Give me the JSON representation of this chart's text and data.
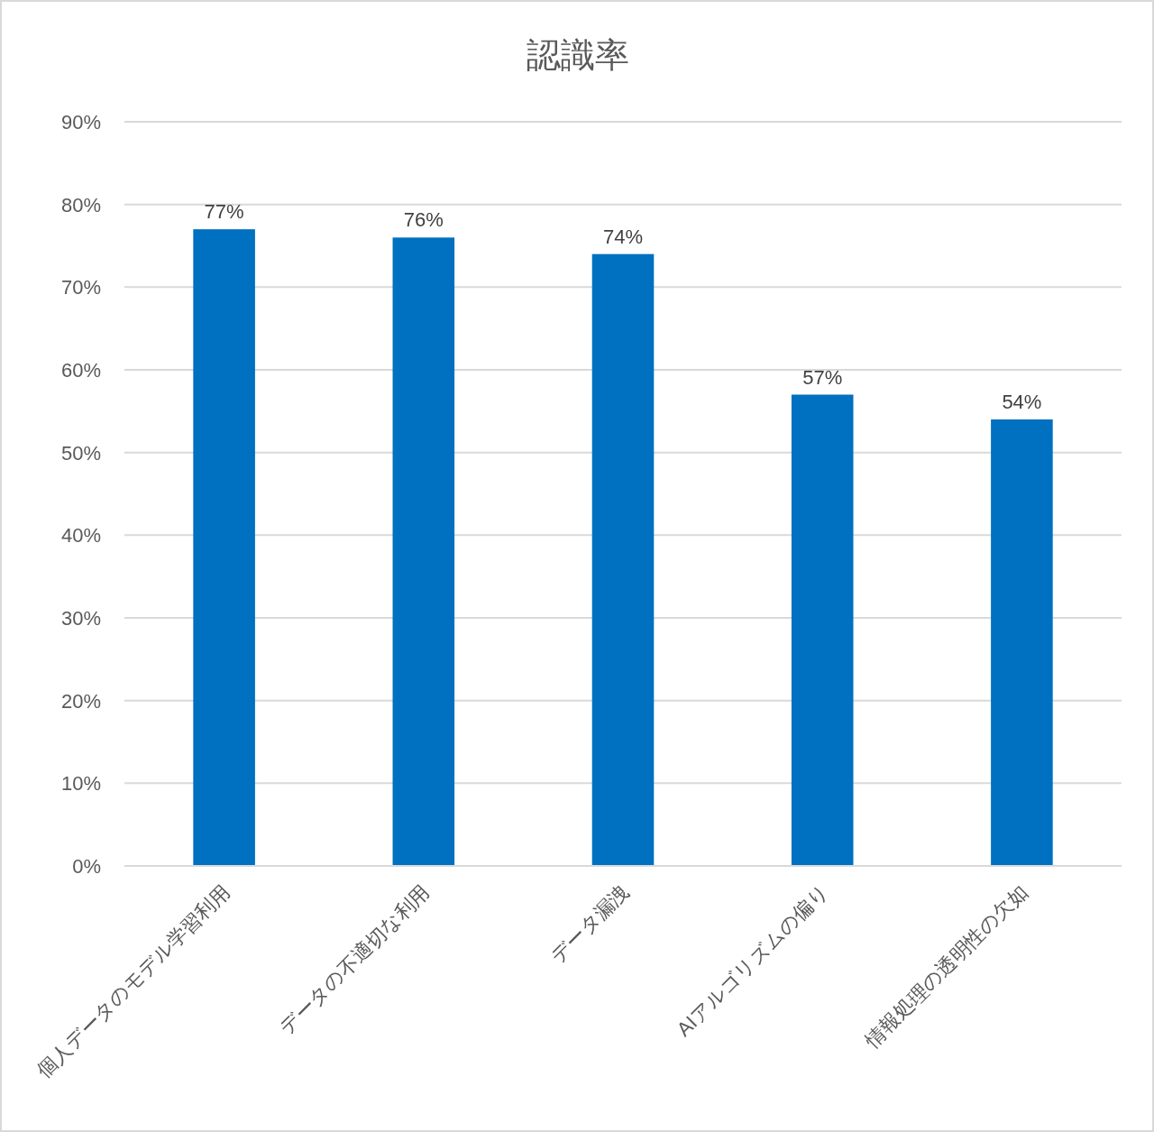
{
  "chart_data": {
    "type": "bar",
    "title": "認識率",
    "categories": [
      "個人データのモデル学習利用",
      "データの不適切な利用",
      "データ漏洩",
      "AIアルゴリズムの偏り",
      "情報処理の透明性の欠如"
    ],
    "values": [
      77,
      76,
      74,
      57,
      54
    ],
    "value_labels": [
      "77%",
      "76%",
      "74%",
      "57%",
      "54%"
    ],
    "color": "#0070c0",
    "ylim": [
      0,
      90
    ],
    "yticks": [
      {
        "value": 0,
        "label": "0%"
      },
      {
        "value": 10,
        "label": "10%"
      },
      {
        "value": 20,
        "label": "20%"
      },
      {
        "value": 30,
        "label": "30%"
      },
      {
        "value": 40,
        "label": "40%"
      },
      {
        "value": 50,
        "label": "50%"
      },
      {
        "value": 60,
        "label": "60%"
      },
      {
        "value": 70,
        "label": "70%"
      },
      {
        "value": 80,
        "label": "80%"
      },
      {
        "value": 90,
        "label": "90%"
      }
    ],
    "grid": "y"
  }
}
